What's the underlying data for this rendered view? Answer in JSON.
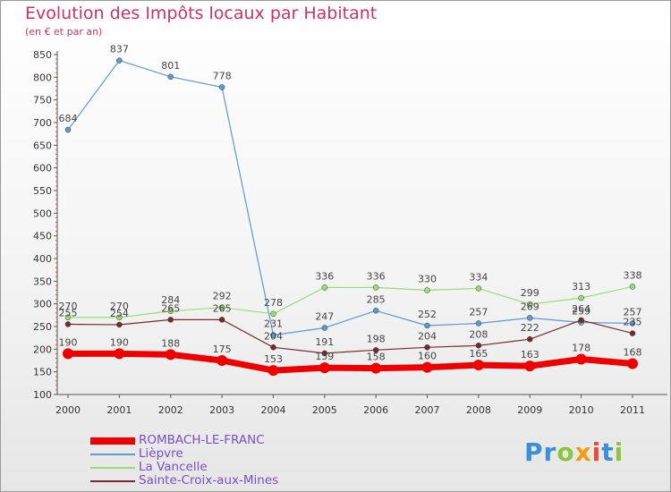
{
  "title": "Evolution des Impôts locaux par Habitant",
  "subtitle": "(en € et par an)",
  "brand": {
    "text": "Proxiti",
    "letters": [
      {
        "char": "P",
        "color": "#3a8fd6"
      },
      {
        "char": "r",
        "color": "#3a8fd6"
      },
      {
        "char": "o",
        "color": "#8cc63f"
      },
      {
        "char": "x",
        "color": "#f39c12"
      },
      {
        "char": "i",
        "color": "#e74c3c"
      },
      {
        "char": "t",
        "color": "#3a8fd6"
      },
      {
        "char": "i",
        "color": "#8cc63f"
      }
    ]
  },
  "chart_data": {
    "type": "line",
    "title": "Evolution des Impôts locaux par Habitant",
    "subtitle": "(en € et par an)",
    "xlabel": "",
    "ylabel": "",
    "x": [
      "2000",
      "2001",
      "2002",
      "2003",
      "2004",
      "2005",
      "2006",
      "2007",
      "2008",
      "2009",
      "2010",
      "2011"
    ],
    "ylim": [
      100,
      850
    ],
    "yticks": [
      100,
      150,
      200,
      250,
      300,
      350,
      400,
      450,
      500,
      550,
      600,
      650,
      700,
      750,
      800,
      850
    ],
    "grid": false,
    "legend_position": "bottom-left",
    "series": [
      {
        "name": "ROMBACH-LE-FRANC",
        "color": "#ee0000",
        "values": [
          190,
          190,
          188,
          175,
          153,
          159,
          158,
          160,
          165,
          163,
          178,
          168
        ]
      },
      {
        "name": "Lièpvre",
        "color": "#5b9bd5",
        "values": [
          684,
          837,
          801,
          778,
          231,
          247,
          285,
          252,
          257,
          269,
          259,
          257
        ]
      },
      {
        "name": "La Vancelle",
        "color": "#99dd77",
        "values": [
          270,
          270,
          284,
          292,
          278,
          336,
          336,
          330,
          334,
          299,
          313,
          338
        ]
      },
      {
        "name": "Sainte-Croix-aux-Mines",
        "color": "#7a2a2a",
        "values": [
          255,
          254,
          265,
          265,
          204,
          191,
          198,
          204,
          208,
          222,
          264,
          235
        ]
      }
    ]
  }
}
